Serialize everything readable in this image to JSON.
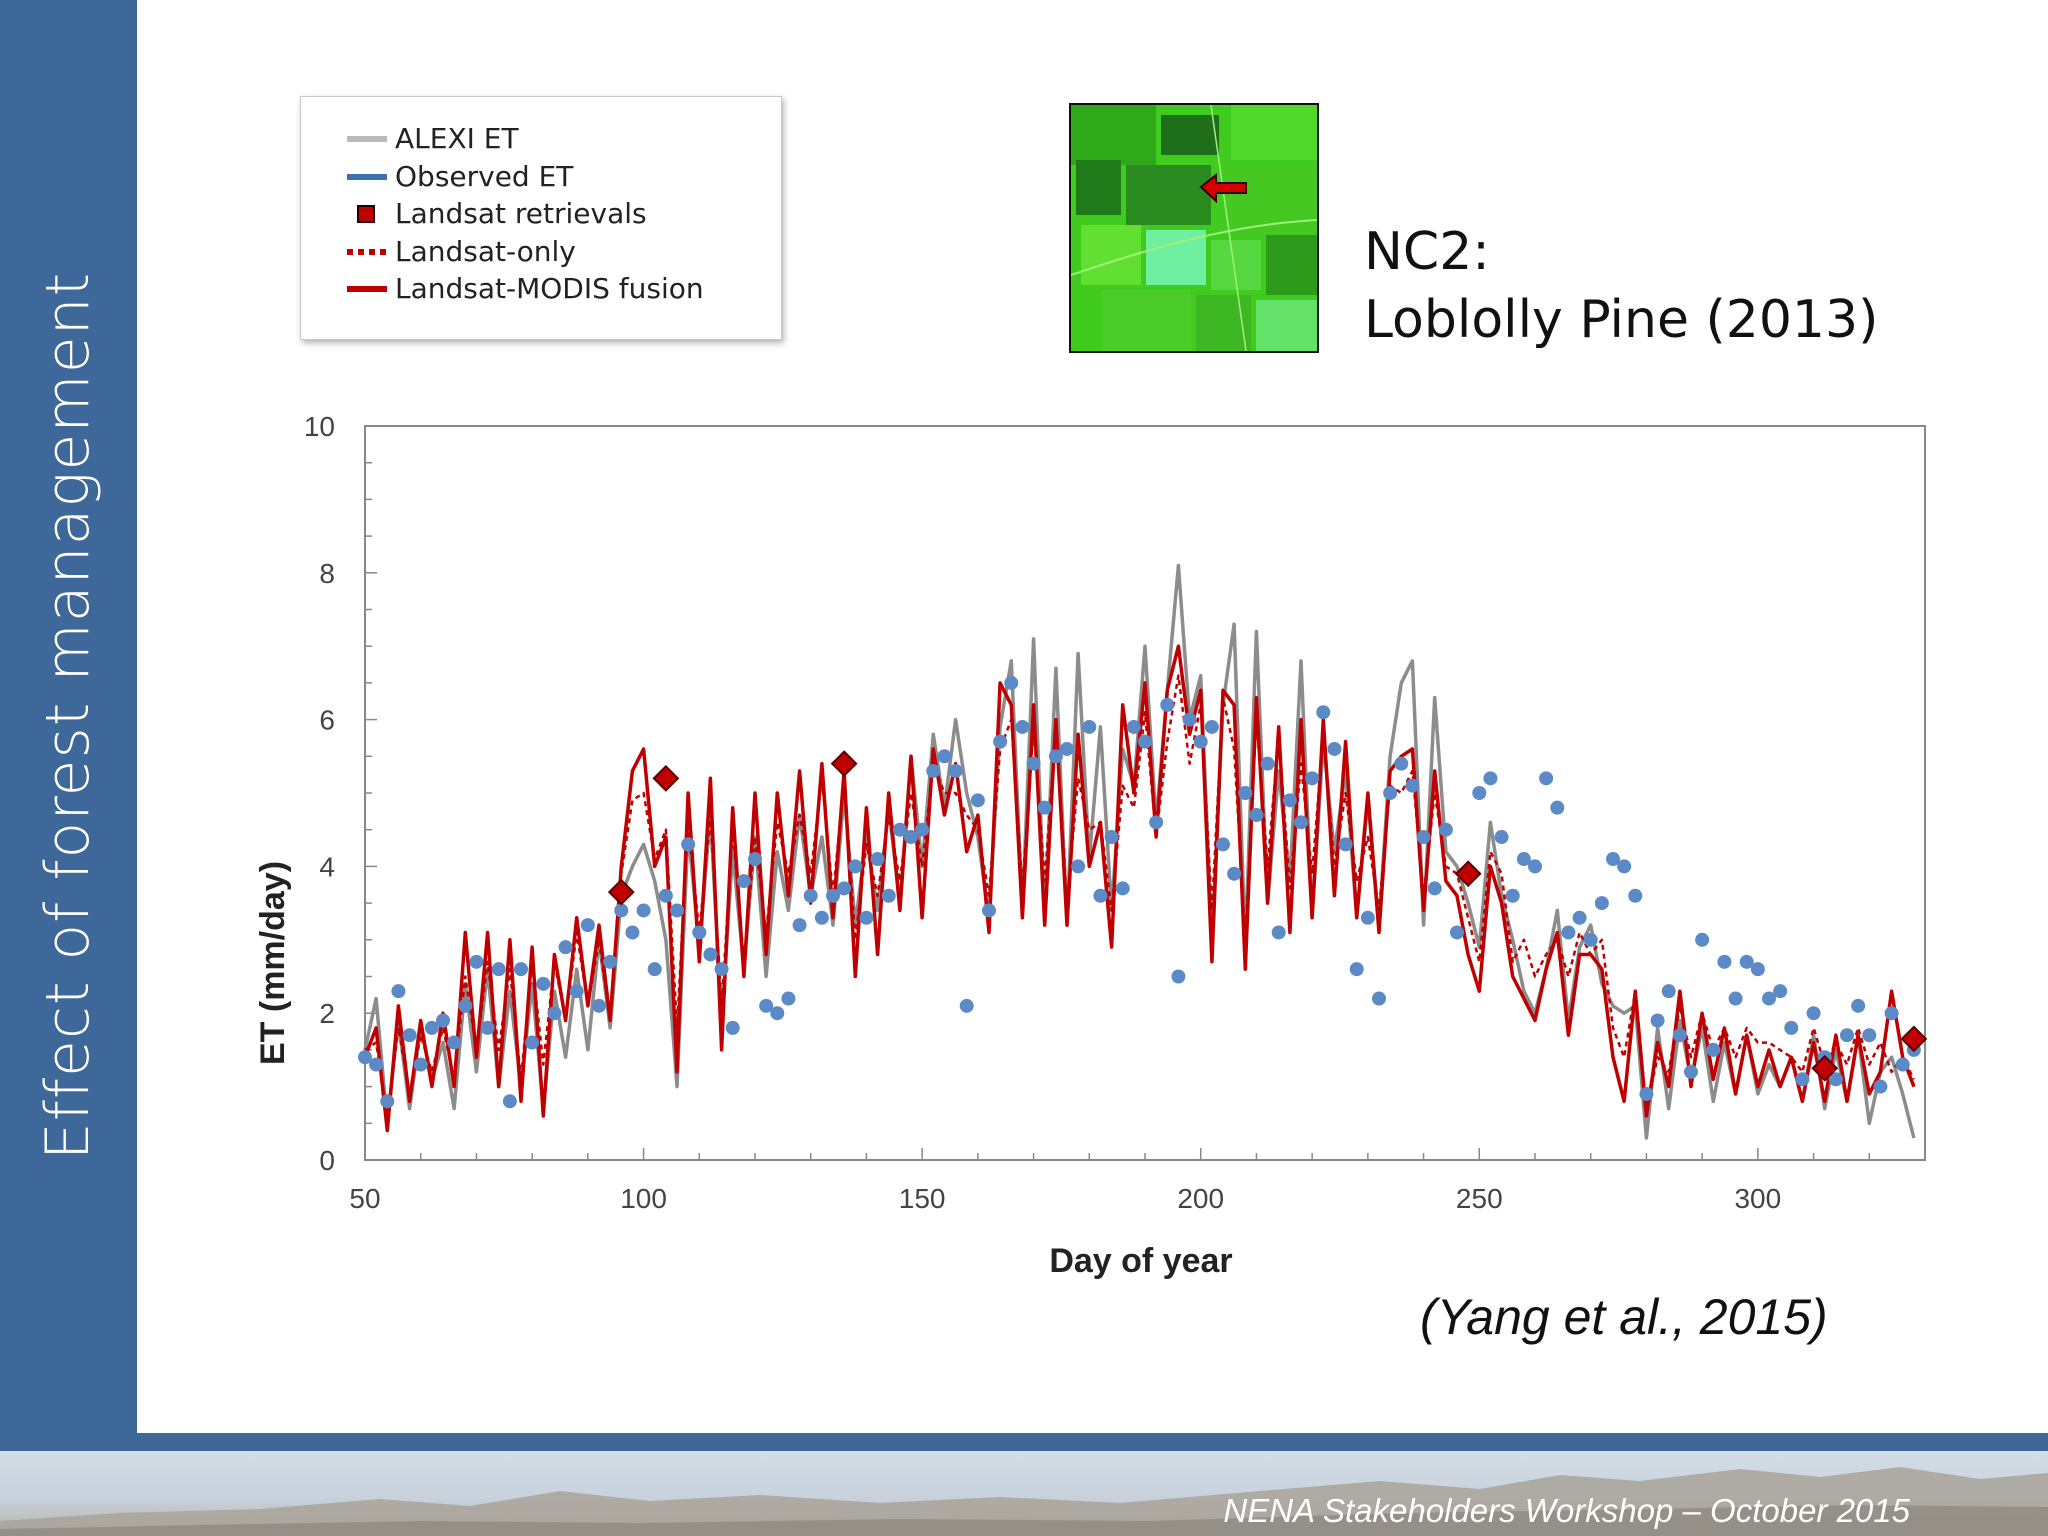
{
  "slide": {
    "sidebar_title": "Effect of forest management",
    "footer_text": "NENA Stakeholders Workshop – October 2015",
    "site_line1": "NC2:",
    "site_line2": "Loblolly Pine (2013)",
    "citation": "(Yang et al., 2015)"
  },
  "legend": {
    "items": [
      {
        "label": "ALEXI ET",
        "color": "#b9b9b9"
      },
      {
        "label": "Observed ET",
        "color": "#3e6fb0"
      },
      {
        "label": "Landsat retrievals",
        "color": "#c00000"
      },
      {
        "label": "Landsat-only",
        "color": "#c00000"
      },
      {
        "label": "Landsat-MODIS fusion",
        "color": "#c00000"
      }
    ]
  },
  "chart_data": {
    "type": "line",
    "title": "",
    "xlabel": "Day of year",
    "ylabel": "ET (mm/day)",
    "xlim": [
      50,
      330
    ],
    "ylim": [
      0,
      10
    ],
    "xticks": [
      50,
      100,
      150,
      200,
      250,
      300
    ],
    "yticks": [
      0,
      2,
      4,
      6,
      8,
      10
    ],
    "grid": false,
    "colors": {
      "alexi": "#8c8c8c",
      "observed": "#5b8ac6",
      "landsat": "#c00000",
      "fusion": "#c00000",
      "marker_edge": "#5a0000"
    },
    "series": [
      {
        "name": "ALEXI ET",
        "x": [
          50,
          52,
          54,
          56,
          58,
          60,
          62,
          64,
          66,
          68,
          70,
          72,
          74,
          76,
          78,
          80,
          82,
          84,
          86,
          88,
          90,
          92,
          94,
          96,
          98,
          100,
          102,
          104,
          106,
          108,
          110,
          112,
          114,
          116,
          118,
          120,
          122,
          124,
          126,
          128,
          130,
          132,
          134,
          136,
          138,
          140,
          142,
          144,
          146,
          148,
          150,
          152,
          154,
          156,
          158,
          160,
          162,
          164,
          166,
          168,
          170,
          172,
          174,
          176,
          178,
          180,
          182,
          184,
          186,
          188,
          190,
          192,
          194,
          196,
          198,
          200,
          202,
          204,
          206,
          208,
          210,
          212,
          214,
          216,
          218,
          220,
          222,
          224,
          226,
          228,
          230,
          232,
          234,
          236,
          238,
          240,
          242,
          244,
          246,
          248,
          250,
          252,
          254,
          256,
          258,
          260,
          262,
          264,
          266,
          268,
          270,
          272,
          274,
          276,
          278,
          280,
          282,
          284,
          286,
          288,
          290,
          292,
          294,
          296,
          298,
          300,
          302,
          304,
          306,
          308,
          310,
          312,
          314,
          316,
          318,
          320,
          322,
          324,
          326,
          328
        ],
        "y": [
          1.5,
          2.2,
          0.5,
          1.9,
          0.7,
          1.8,
          1.1,
          1.6,
          0.7,
          2.4,
          1.2,
          2.6,
          1.0,
          2.3,
          1.0,
          2.4,
          0.7,
          2.3,
          1.4,
          2.6,
          1.5,
          3.0,
          1.8,
          3.6,
          4.0,
          4.3,
          3.8,
          3.0,
          1.0,
          4.5,
          2.9,
          4.7,
          1.9,
          4.2,
          2.6,
          4.4,
          2.5,
          4.2,
          3.4,
          4.7,
          3.6,
          4.4,
          3.2,
          5.0,
          3.2,
          4.4,
          3.4,
          4.8,
          3.5,
          5.5,
          4.0,
          5.8,
          4.8,
          6.0,
          5.0,
          4.4,
          3.3,
          5.9,
          6.8,
          3.4,
          7.1,
          3.3,
          6.7,
          3.2,
          6.9,
          4.1,
          5.9,
          3.4,
          5.6,
          5.1,
          7.0,
          4.6,
          6.4,
          8.1,
          6.0,
          6.6,
          3.0,
          6.2,
          7.3,
          2.9,
          7.2,
          3.5,
          5.3,
          3.8,
          6.8,
          3.3,
          5.7,
          4.2,
          5.3,
          3.3,
          4.9,
          3.2,
          5.5,
          6.5,
          6.8,
          3.2,
          6.3,
          4.2,
          4.0,
          3.5,
          2.9,
          4.6,
          3.6,
          3.0,
          2.3,
          2.0,
          2.6,
          3.4,
          1.9,
          2.9,
          3.2,
          2.4,
          2.1,
          2.0,
          2.1,
          0.3,
          1.8,
          0.7,
          1.9,
          1.1,
          1.8,
          0.8,
          1.6,
          0.9,
          1.7,
          0.9,
          1.3,
          1.0,
          1.4,
          0.8,
          1.7,
          0.7,
          1.5,
          0.8,
          1.7,
          0.5,
          1.2,
          1.4,
          0.9,
          0.3
        ]
      },
      {
        "name": "Observed ET",
        "x": [
          50,
          52,
          54,
          56,
          58,
          60,
          62,
          64,
          66,
          68,
          70,
          72,
          74,
          76,
          78,
          80,
          82,
          84,
          86,
          88,
          90,
          92,
          94,
          96,
          98,
          100,
          102,
          104,
          106,
          108,
          110,
          112,
          114,
          116,
          118,
          120,
          122,
          124,
          126,
          128,
          130,
          132,
          134,
          136,
          138,
          140,
          142,
          144,
          146,
          148,
          150,
          152,
          154,
          156,
          158,
          160,
          162,
          164,
          166,
          168,
          170,
          172,
          174,
          176,
          178,
          180,
          182,
          184,
          186,
          188,
          190,
          192,
          194,
          196,
          198,
          200,
          202,
          204,
          206,
          208,
          210,
          212,
          214,
          216,
          218,
          220,
          222,
          224,
          226,
          228,
          230,
          232,
          234,
          236,
          238,
          240,
          242,
          244,
          246,
          248,
          250,
          252,
          254,
          256,
          258,
          260,
          262,
          264,
          266,
          268,
          270,
          272,
          274,
          276,
          278,
          280,
          282,
          284,
          286,
          288,
          290,
          292,
          294,
          296,
          298,
          300,
          302,
          304,
          306,
          308,
          310,
          312,
          314,
          316,
          318,
          320,
          322,
          324,
          326,
          328
        ],
        "y": [
          1.4,
          1.3,
          0.8,
          2.3,
          1.7,
          1.3,
          1.8,
          1.9,
          1.6,
          2.1,
          2.7,
          1.8,
          2.6,
          0.8,
          2.6,
          1.6,
          2.4,
          2.0,
          2.9,
          2.3,
          3.2,
          2.1,
          2.7,
          3.4,
          3.1,
          3.4,
          2.6,
          3.6,
          3.4,
          4.3,
          3.1,
          2.8,
          2.6,
          1.8,
          3.8,
          4.1,
          2.1,
          2.0,
          2.2,
          3.2,
          3.6,
          3.3,
          3.6,
          3.7,
          4.0,
          3.3,
          4.1,
          3.6,
          4.5,
          4.4,
          4.5,
          5.3,
          5.5,
          5.3,
          2.1,
          4.9,
          3.4,
          5.7,
          6.5,
          5.9,
          5.4,
          4.8,
          5.5,
          5.6,
          4.0,
          5.9,
          3.6,
          4.4,
          3.7,
          5.9,
          5.7,
          4.6,
          6.2,
          2.5,
          6.0,
          5.7,
          5.9,
          4.3,
          3.9,
          5.0,
          4.7,
          5.4,
          3.1,
          4.9,
          4.6,
          5.2,
          6.1,
          5.6,
          4.3,
          2.6,
          3.3,
          2.2,
          5.0,
          5.4,
          5.1,
          4.4,
          3.7,
          4.5,
          3.1,
          3.9,
          5.0,
          5.2,
          4.4,
          3.6,
          4.1,
          4.0,
          5.2,
          4.8,
          3.1,
          3.3,
          3.0,
          3.5,
          4.1,
          4.0,
          3.6,
          0.9,
          1.9,
          2.3,
          1.7,
          1.2,
          3.0,
          1.5,
          2.7,
          2.2,
          2.7,
          2.6,
          2.2,
          2.3,
          1.8,
          1.1,
          2.0,
          1.4,
          1.1,
          1.7,
          2.1,
          1.7,
          1.0,
          2.0,
          1.3,
          1.5
        ]
      },
      {
        "name": "Landsat-only",
        "x": [
          50,
          52,
          54,
          56,
          58,
          60,
          62,
          64,
          66,
          68,
          70,
          72,
          74,
          76,
          78,
          80,
          82,
          84,
          86,
          88,
          90,
          92,
          94,
          96,
          98,
          100,
          102,
          104,
          106,
          108,
          110,
          112,
          114,
          116,
          118,
          120,
          122,
          124,
          126,
          128,
          130,
          132,
          134,
          136,
          138,
          140,
          142,
          144,
          146,
          148,
          150,
          152,
          154,
          156,
          158,
          160,
          162,
          164,
          166,
          168,
          170,
          172,
          174,
          176,
          178,
          180,
          182,
          184,
          186,
          188,
          190,
          192,
          194,
          196,
          198,
          200,
          202,
          204,
          206,
          208,
          210,
          212,
          214,
          216,
          218,
          220,
          222,
          224,
          226,
          228,
          230,
          232,
          234,
          236,
          238,
          240,
          242,
          244,
          246,
          248,
          250,
          252,
          254,
          256,
          258,
          260,
          262,
          264,
          266,
          268,
          270,
          272,
          274,
          276,
          278,
          280,
          282,
          284,
          286,
          288,
          290,
          292,
          294,
          296,
          298,
          300,
          302,
          304,
          306,
          308,
          310,
          312,
          314,
          316,
          318,
          320,
          322,
          324,
          326,
          328
        ],
        "y": [
          1.5,
          1.6,
          0.6,
          1.8,
          0.9,
          1.7,
          1.2,
          1.8,
          1.1,
          2.5,
          1.5,
          2.7,
          1.5,
          2.6,
          1.1,
          2.7,
          1.3,
          2.7,
          1.9,
          3.1,
          2.1,
          3.0,
          1.9,
          3.9,
          4.9,
          5.0,
          4.1,
          4.5,
          1.8,
          4.6,
          3.1,
          4.7,
          2.1,
          4.5,
          2.7,
          4.4,
          3.1,
          4.6,
          3.9,
          4.7,
          3.9,
          5.2,
          3.6,
          5.2,
          3.0,
          4.3,
          3.6,
          4.7,
          3.8,
          5.0,
          4.0,
          5.4,
          5.0,
          5.0,
          4.7,
          4.5,
          3.6,
          5.6,
          6.0,
          3.7,
          5.9,
          3.8,
          5.9,
          3.5,
          5.2,
          4.5,
          4.6,
          3.4,
          5.1,
          4.8,
          6.1,
          4.4,
          5.7,
          6.6,
          5.4,
          6.2,
          3.4,
          6.3,
          5.6,
          3.0,
          6.0,
          4.0,
          5.8,
          3.7,
          5.4,
          3.9,
          5.8,
          4.0,
          5.0,
          3.8,
          4.4,
          3.4,
          5.1,
          5.0,
          5.3,
          3.6,
          5.0,
          4.0,
          3.9,
          3.3,
          2.7,
          4.2,
          3.9,
          2.7,
          3.0,
          2.5,
          2.8,
          3.0,
          2.5,
          3.1,
          2.8,
          3.0,
          1.8,
          1.4,
          2.3,
          0.7,
          1.4,
          1.2,
          2.1,
          1.4,
          2.0,
          1.5,
          1.8,
          1.4,
          1.8,
          1.6,
          1.6,
          1.5,
          1.4,
          1.2,
          1.8,
          1.3,
          1.6,
          1.3,
          1.8,
          1.3,
          1.6,
          1.2,
          1.4,
          1.1
        ]
      },
      {
        "name": "Landsat-MODIS fusion",
        "x": [
          50,
          52,
          54,
          56,
          58,
          60,
          62,
          64,
          66,
          68,
          70,
          72,
          74,
          76,
          78,
          80,
          82,
          84,
          86,
          88,
          90,
          92,
          94,
          96,
          98,
          100,
          102,
          104,
          106,
          108,
          110,
          112,
          114,
          116,
          118,
          120,
          122,
          124,
          126,
          128,
          130,
          132,
          134,
          136,
          138,
          140,
          142,
          144,
          146,
          148,
          150,
          152,
          154,
          156,
          158,
          160,
          162,
          164,
          166,
          168,
          170,
          172,
          174,
          176,
          178,
          180,
          182,
          184,
          186,
          188,
          190,
          192,
          194,
          196,
          198,
          200,
          202,
          204,
          206,
          208,
          210,
          212,
          214,
          216,
          218,
          220,
          222,
          224,
          226,
          228,
          230,
          232,
          234,
          236,
          238,
          240,
          242,
          244,
          246,
          248,
          250,
          252,
          254,
          256,
          258,
          260,
          262,
          264,
          266,
          268,
          270,
          272,
          274,
          276,
          278,
          280,
          282,
          284,
          286,
          288,
          290,
          292,
          294,
          296,
          298,
          300,
          302,
          304,
          306,
          308,
          310,
          312,
          314,
          316,
          318,
          320,
          322,
          324,
          326,
          328
        ],
        "y": [
          1.4,
          1.8,
          0.4,
          2.1,
          0.8,
          1.9,
          1.0,
          2.0,
          1.0,
          3.1,
          1.4,
          3.1,
          1.0,
          3.0,
          0.8,
          2.9,
          0.6,
          2.8,
          1.9,
          3.3,
          2.1,
          3.2,
          1.9,
          4.0,
          5.3,
          5.6,
          4.0,
          4.4,
          1.2,
          5.0,
          2.7,
          5.2,
          1.5,
          4.8,
          2.5,
          5.0,
          2.8,
          5.0,
          3.6,
          5.3,
          3.5,
          5.4,
          3.3,
          5.3,
          2.5,
          4.8,
          2.8,
          5.0,
          3.4,
          5.5,
          3.3,
          5.6,
          4.7,
          5.4,
          4.2,
          4.7,
          3.1,
          6.5,
          6.2,
          3.3,
          6.2,
          3.2,
          6.0,
          3.2,
          5.8,
          4.0,
          4.6,
          2.9,
          6.2,
          5.0,
          6.5,
          4.4,
          6.4,
          7.0,
          5.8,
          6.4,
          2.7,
          6.4,
          6.2,
          2.6,
          6.3,
          3.5,
          5.9,
          3.1,
          6.0,
          3.3,
          6.0,
          3.6,
          5.7,
          3.3,
          5.0,
          3.1,
          5.3,
          5.5,
          5.6,
          3.4,
          5.3,
          3.8,
          3.6,
          2.8,
          2.3,
          4.0,
          3.5,
          2.5,
          2.2,
          1.9,
          2.6,
          3.1,
          1.7,
          2.8,
          2.8,
          2.6,
          1.4,
          0.8,
          2.3,
          0.6,
          1.6,
          1.0,
          2.3,
          1.0,
          2.0,
          1.1,
          1.8,
          0.9,
          1.7,
          1.0,
          1.5,
          1.0,
          1.4,
          0.8,
          1.6,
          0.8,
          1.7,
          0.8,
          1.7,
          0.9,
          1.2,
          2.3,
          1.4,
          1.0
        ]
      },
      {
        "name": "Landsat retrievals",
        "x": [
          96,
          104,
          136,
          248,
          312,
          328
        ],
        "y": [
          3.65,
          5.2,
          5.4,
          3.9,
          1.25,
          1.65
        ]
      }
    ]
  }
}
